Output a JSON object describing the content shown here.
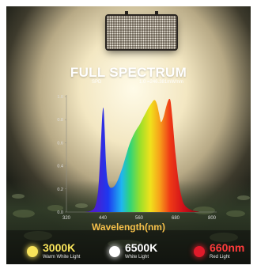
{
  "header": {
    "title": "FULL SPECTRUM",
    "spd_label": "SPD",
    "scale_note": "1.0 =246.381mW/nm"
  },
  "colors": {
    "axis_text": "#dddddd",
    "xlabel": "#f6c04a",
    "warm_dot": "#f7e35a",
    "white_dot": "#ffffff",
    "red_dot": "#e01a2a",
    "red_text": "#ff3b3b"
  },
  "chart_data": {
    "type": "area",
    "title": "FULL SPECTRUM",
    "xlabel": "Wavelength(nm)",
    "ylabel": "",
    "xlim": [
      320,
      800
    ],
    "ylim": [
      0,
      1.0
    ],
    "x_ticks": [
      320,
      440,
      560,
      680,
      800
    ],
    "y_ticks": [
      "0.0",
      "0.2",
      "0.4",
      "0.6",
      "0.8",
      "1.0"
    ],
    "x": [
      380,
      400,
      415,
      425,
      432,
      438,
      442,
      446,
      450,
      455,
      462,
      470,
      480,
      490,
      500,
      510,
      520,
      530,
      540,
      550,
      560,
      570,
      580,
      590,
      600,
      610,
      618,
      625,
      632,
      640,
      648,
      655,
      660,
      664,
      670,
      680,
      690,
      700,
      710,
      730,
      760
    ],
    "y": [
      0.0,
      0.01,
      0.05,
      0.2,
      0.5,
      0.82,
      0.9,
      0.72,
      0.45,
      0.28,
      0.22,
      0.21,
      0.23,
      0.28,
      0.35,
      0.43,
      0.52,
      0.6,
      0.66,
      0.71,
      0.75,
      0.8,
      0.85,
      0.9,
      0.94,
      0.97,
      0.94,
      0.86,
      0.78,
      0.82,
      0.9,
      0.96,
      0.98,
      0.95,
      0.8,
      0.5,
      0.27,
      0.13,
      0.06,
      0.02,
      0.0
    ]
  },
  "legend": [
    {
      "main": "3000K",
      "sub": "Warm White Light"
    },
    {
      "main": "6500K",
      "sub": "White Light"
    },
    {
      "main": "660nm",
      "sub": "Red Light"
    }
  ]
}
